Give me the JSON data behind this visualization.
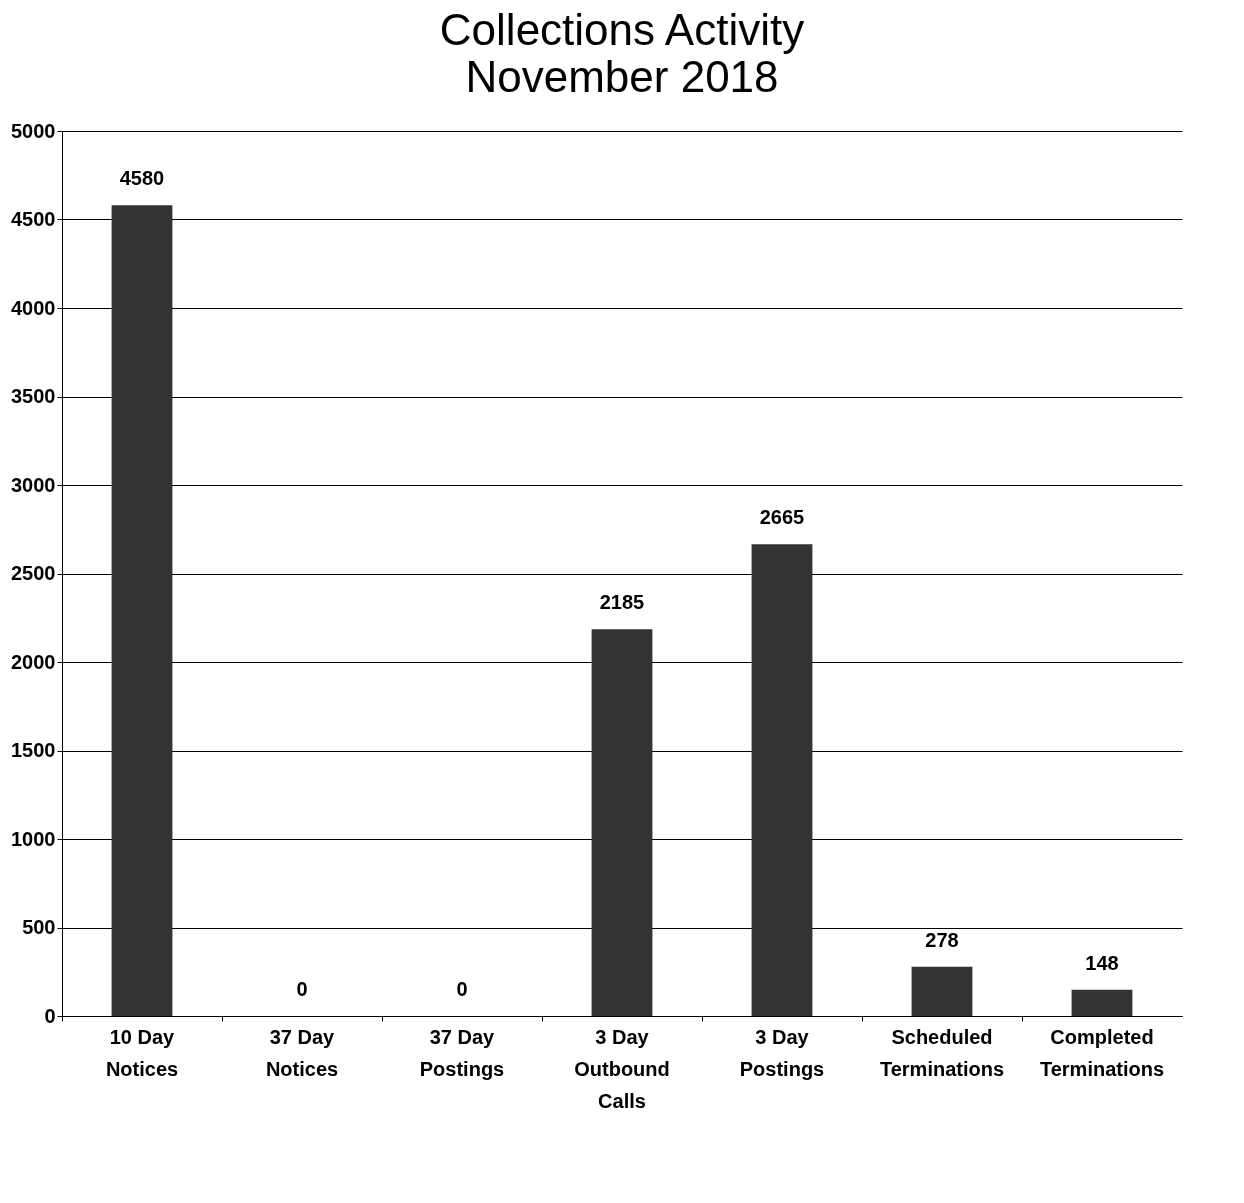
{
  "chart_data": {
    "type": "bar",
    "title": "Collections Activity",
    "subtitle": "November 2018",
    "categories": [
      "10 Day Notices",
      "37 Day Notices",
      "37 Day Postings",
      "3 Day Outbound Calls",
      "3 Day Postings",
      "Scheduled Terminations",
      "Completed Terminations"
    ],
    "values": [
      4580,
      0,
      0,
      2185,
      2665,
      278,
      148
    ],
    "color": "#333333",
    "ylim": [
      0,
      5000
    ],
    "yticks": [
      0,
      500,
      1000,
      1500,
      2000,
      2500,
      3000,
      3500,
      4000,
      4500,
      5000
    ],
    "grid": "y",
    "data_labels": true
  }
}
